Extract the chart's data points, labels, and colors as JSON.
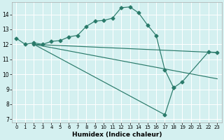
{
  "xlabel": "Humidex (Indice chaleur)",
  "bg_color": "#d4f0f0",
  "grid_color": "#ffffff",
  "line_color": "#2a7a6a",
  "xlim": [
    -0.5,
    23.5
  ],
  "ylim": [
    6.8,
    14.8
  ],
  "yticks": [
    7,
    8,
    9,
    10,
    11,
    12,
    13,
    14
  ],
  "xticks": [
    0,
    1,
    2,
    3,
    4,
    5,
    6,
    7,
    8,
    9,
    10,
    11,
    12,
    13,
    14,
    15,
    16,
    17,
    18,
    19,
    20,
    21,
    22,
    23
  ],
  "line1_x": [
    0,
    1,
    2,
    3,
    4,
    5,
    6,
    7,
    8,
    9,
    10,
    11,
    12,
    13,
    14,
    15,
    16,
    17,
    18
  ],
  "line1_y": [
    12.4,
    12.0,
    12.1,
    12.0,
    12.2,
    12.25,
    12.5,
    12.6,
    13.2,
    13.55,
    13.6,
    13.75,
    14.45,
    14.5,
    14.1,
    13.3,
    12.6,
    10.3,
    9.1
  ],
  "line2_x": [
    2,
    17,
    18,
    19,
    22,
    23
  ],
  "line2_y": [
    12.0,
    7.3,
    9.1,
    9.5,
    11.5,
    11.45
  ],
  "line3_x": [
    2,
    23
  ],
  "line3_y": [
    12.0,
    11.45
  ],
  "line4_x": [
    2,
    23
  ],
  "line4_y": [
    12.0,
    9.7
  ],
  "marker": "D",
  "markersize": 2.5
}
